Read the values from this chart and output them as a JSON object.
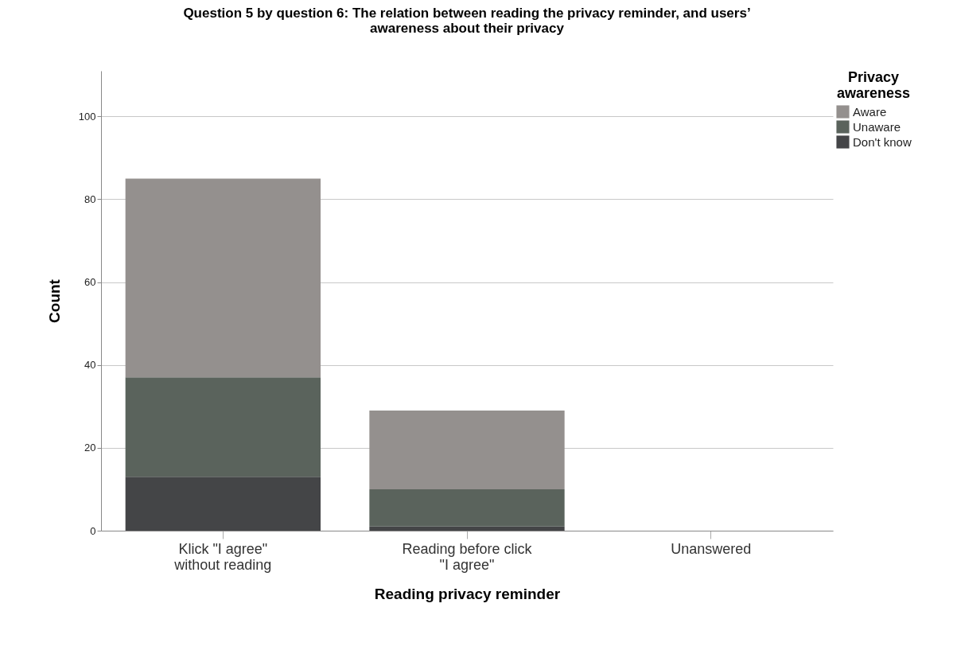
{
  "chart_data": {
    "type": "bar",
    "title": "Question 5 by question 6: The relation between reading the privacy reminder, and users’ awareness about their privacy",
    "xlabel": "Reading privacy reminder",
    "ylabel": "Count",
    "legend_title": "Privacy awareness",
    "categories": [
      "Klick \"I agree\" without reading",
      "Reading before click \"I agree\"",
      "Unanswered"
    ],
    "stacked": true,
    "series": [
      {
        "name": "Don't know",
        "color": "#444547",
        "values": [
          13,
          1,
          0
        ]
      },
      {
        "name": "Unaware",
        "color": "#5a635c",
        "values": [
          24,
          9,
          0
        ]
      },
      {
        "name": "Aware",
        "color": "#94908e",
        "values": [
          48,
          19,
          0
        ]
      }
    ],
    "ylim": [
      0,
      111
    ],
    "yticks": [
      0,
      20,
      40,
      60,
      80,
      100
    ],
    "grid": "y",
    "legend": "top right"
  }
}
